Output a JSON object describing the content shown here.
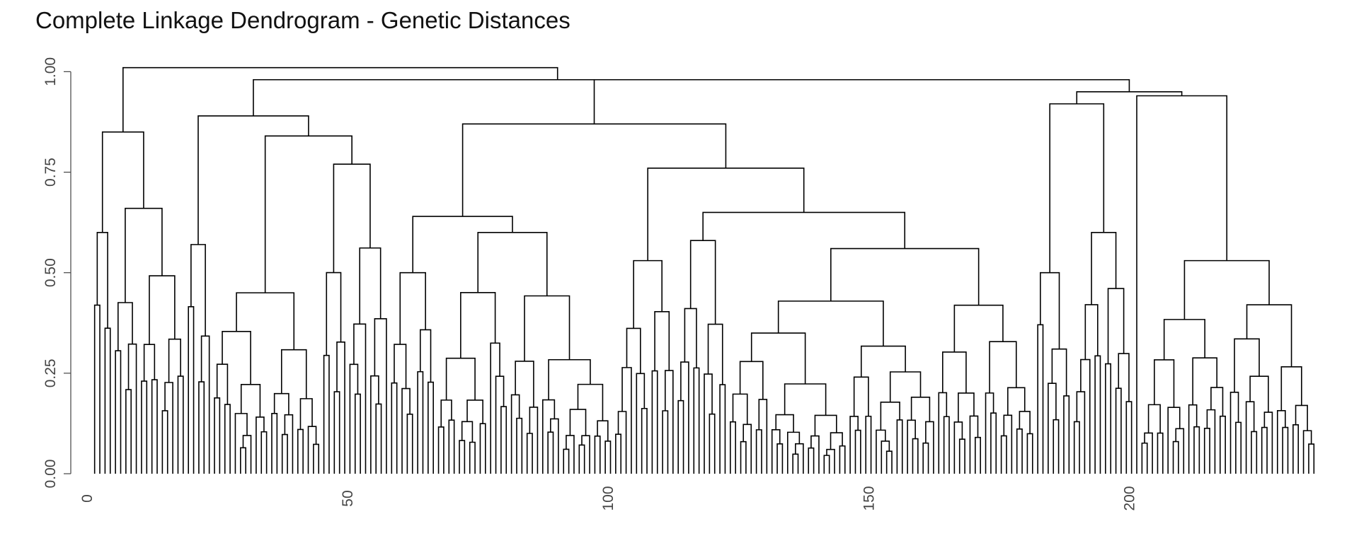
{
  "chart_data": {
    "type": "dendrogram",
    "title": "Complete Linkage Dendrogram - Genetic Distances",
    "xlabel": "",
    "ylabel": "",
    "leaf_count": 235,
    "xlim": [
      0,
      235
    ],
    "ylim": [
      0,
      1.02
    ],
    "x_ticks": [
      0,
      50,
      100,
      150,
      200
    ],
    "y_ticks": [
      0.0,
      0.25,
      0.5,
      0.75,
      1.0
    ],
    "x_tick_labels": [
      "0",
      "50",
      "100",
      "150",
      "200"
    ],
    "y_tick_labels": [
      "0.00",
      "0.25",
      "0.50",
      "0.75",
      "1.00"
    ],
    "line_color": "#000000",
    "merge_heights": {
      "root": 1.01,
      "left_cluster_top": 0.89,
      "far_left_cluster": 0.85,
      "mid_left_cluster": 0.84,
      "middle_right_cluster": 0.98,
      "middle_cluster": 0.87,
      "middle_sub_a": 0.64,
      "middle_sub_b": 0.76,
      "middle_sub_c": 0.65,
      "middle_sub_d": 0.56,
      "right_cluster_top": 0.95,
      "right_sub_a": 0.92,
      "right_sub_b": 0.94,
      "right_sub_c": 0.53
    }
  }
}
